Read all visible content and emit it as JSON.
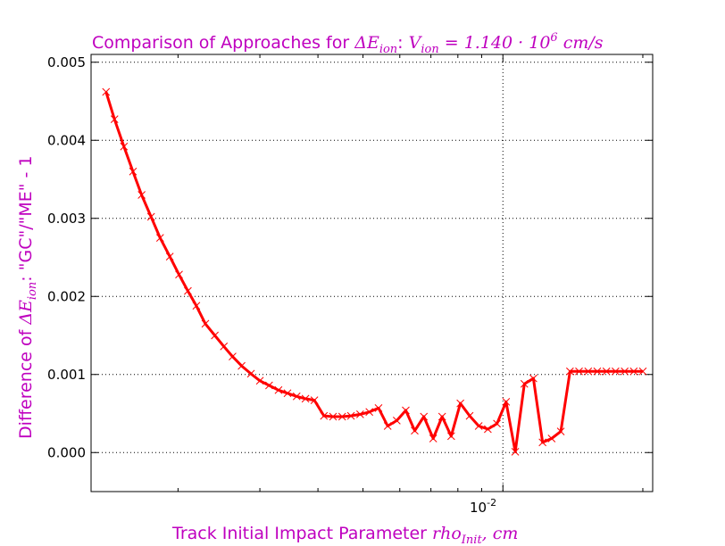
{
  "chart_data": {
    "type": "line",
    "title": {
      "prefix": "Comparison of Approaches for ",
      "delta": "ΔE",
      "ion": "ion",
      "colon": ": ",
      "v": "V",
      "eq": " = 1.140 · 10",
      "exp": "6",
      "unit": "  cm/s"
    },
    "xlabel": {
      "text": "Track Initial Impact Parameter ",
      "rho": "rho",
      "init": "Init",
      "unit": ", cm"
    },
    "ylabel": {
      "prefix": "Difference of ",
      "delta": "ΔE",
      "ion": "ion",
      "suffix": ": \"GC\"/\"ME\" - 1"
    },
    "x_scale": "log",
    "xlim": [
      0.0013,
      0.021
    ],
    "ylim": [
      -0.0005,
      0.0051
    ],
    "y_ticks": [
      0.0,
      0.001,
      0.002,
      0.003,
      0.004,
      0.005
    ],
    "y_tick_labels": [
      "0.000",
      "0.001",
      "0.002",
      "0.003",
      "0.004",
      "0.005"
    ],
    "x_major_ticks": [
      0.01
    ],
    "x_tick_labels": [
      "10",
      "-2"
    ],
    "grid": true,
    "series": [
      {
        "color": "#ff0000",
        "marker": "x",
        "x": [
          0.0014,
          0.00146,
          0.00153,
          0.0016,
          0.00167,
          0.00175,
          0.00183,
          0.00192,
          0.00201,
          0.0021,
          0.00219,
          0.00229,
          0.0024,
          0.00251,
          0.00262,
          0.00274,
          0.00287,
          0.003,
          0.00314,
          0.00329,
          0.00344,
          0.0036,
          0.00376,
          0.00393,
          0.00412,
          0.00431,
          0.00451,
          0.00471,
          0.00493,
          0.00516,
          0.0054,
          0.00565,
          0.00591,
          0.00618,
          0.00646,
          0.00676,
          0.00708,
          0.0074,
          0.00774,
          0.0081,
          0.00848,
          0.00887,
          0.00928,
          0.00971,
          0.01016,
          0.01063,
          0.01112,
          0.01163,
          0.01217,
          0.01273,
          0.01332,
          0.01394,
          0.01458,
          0.01526,
          0.01596,
          0.0167,
          0.01747,
          0.01828,
          0.01912,
          0.02
        ],
        "y": [
          0.00462,
          0.00427,
          0.00392,
          0.0036,
          0.0033,
          0.00302,
          0.00275,
          0.00251,
          0.00228,
          0.00207,
          0.00188,
          0.00165,
          0.0015,
          0.00136,
          0.00123,
          0.00111,
          0.00101,
          0.00092,
          0.00086,
          0.0008,
          0.00076,
          0.00072,
          0.00069,
          0.00067,
          0.00047,
          0.00046,
          0.00046,
          0.00047,
          0.00049,
          0.00052,
          0.00057,
          0.00034,
          0.00041,
          0.00054,
          0.00028,
          0.00046,
          0.00018,
          0.00046,
          0.00021,
          0.00063,
          0.00047,
          0.00034,
          0.0003,
          0.00037,
          0.00065,
          1e-05,
          0.00088,
          0.00095,
          0.00013,
          0.00018,
          0.00027,
          0.00104,
          0.00104,
          0.00104,
          0.00104,
          0.00104,
          0.00104,
          0.00104,
          0.00104,
          0.00104
        ]
      }
    ]
  }
}
